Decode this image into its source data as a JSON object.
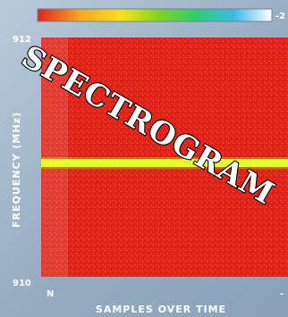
{
  "chart_data": {
    "type": "heatmap",
    "title": "",
    "stamp_text": "SPECTROGRAM",
    "xlabel": "SAMPLES OVER TIME",
    "ylabel": "FREQUENCY (MHz)",
    "y_ticks": [
      "912",
      "910"
    ],
    "x_ticks": [
      "N",
      "-"
    ],
    "colorbar_end_label": "-2",
    "colorbar_colors": [
      "#e0241b",
      "#f5a623",
      "#f7e21c",
      "#7ed321",
      "#2ecc71",
      "#3fb8e8",
      "#ffffff"
    ],
    "background_color": "#e0241b",
    "band_color": "#e8ff2a",
    "band_position_fraction_from_top": 0.44,
    "grid": false
  }
}
